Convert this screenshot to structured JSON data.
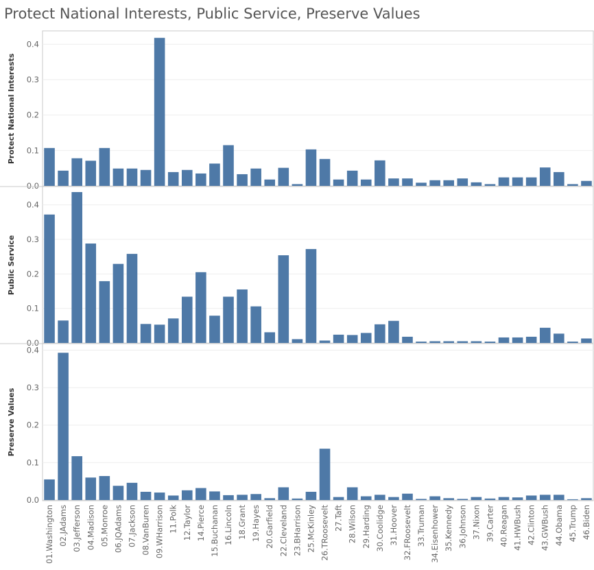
{
  "page": {
    "title": "Protect National Interests, Public Service, Preserve Values"
  },
  "colors": {
    "bar": "#4e79a7",
    "grid": "#eeeeee",
    "border": "#c8c8c8"
  },
  "chart_data": {
    "type": "bar",
    "title": "Protect National Interests, Public Service, Preserve Values",
    "grid": true,
    "categories": [
      "01.Washington",
      "02.JAdams",
      "03.Jefferson",
      "04.Madison",
      "05.Monroe",
      "06.JQAdams",
      "07.Jackson",
      "08.VanBuren",
      "09.WHarrison",
      "11.Polk",
      "12.Taylor",
      "14.Pierce",
      "15.Buchanan",
      "16.Lincoln",
      "18.Grant",
      "19.Hayes",
      "20.Garfield",
      "22.Cleveland",
      "23.BHarrison",
      "25.McKinley",
      "26.TRoosevelt",
      "27.Taft",
      "28.Wilson",
      "29.Harding",
      "30.Coolidge",
      "31.Hoover",
      "32.FRoosevelt",
      "33.Truman",
      "34.Eisenhower",
      "35.Kennedy",
      "36.Johnson",
      "37.Nixon",
      "39.Carter",
      "40.Reagan",
      "41.HWBush",
      "42.Clinton",
      "43.GWBush",
      "44.Obama",
      "45.Trump",
      "46.Biden"
    ],
    "series": [
      {
        "name": "Protect National Interests",
        "ylabel": "Protect National Interests",
        "ylim": [
          0,
          0.43
        ],
        "ticks": [
          "0.0",
          "0.1",
          "0.2",
          "0.3",
          "0.4"
        ],
        "values": [
          0.107,
          0.043,
          0.078,
          0.071,
          0.107,
          0.049,
          0.049,
          0.045,
          0.418,
          0.039,
          0.045,
          0.035,
          0.063,
          0.115,
          0.033,
          0.049,
          0.018,
          0.051,
          0.005,
          0.103,
          0.076,
          0.018,
          0.043,
          0.018,
          0.072,
          0.021,
          0.021,
          0.009,
          0.016,
          0.016,
          0.021,
          0.01,
          0.005,
          0.024,
          0.024,
          0.024,
          0.052,
          0.039,
          0.005,
          0.014
        ]
      },
      {
        "name": "Public Service",
        "ylabel": "Public Service",
        "ylim": [
          0,
          0.445
        ],
        "ticks": [
          "0.0",
          "0.1",
          "0.2",
          "0.3",
          "0.4"
        ],
        "values": [
          0.372,
          0.065,
          0.437,
          0.288,
          0.179,
          0.229,
          0.258,
          0.055,
          0.053,
          0.071,
          0.134,
          0.205,
          0.079,
          0.134,
          0.155,
          0.106,
          0.031,
          0.254,
          0.011,
          0.272,
          0.007,
          0.024,
          0.023,
          0.029,
          0.054,
          0.064,
          0.018,
          0.004,
          0.005,
          0.005,
          0.005,
          0.005,
          0.004,
          0.016,
          0.016,
          0.018,
          0.044,
          0.027,
          0.004,
          0.013
        ]
      },
      {
        "name": "Preserve Values",
        "ylabel": "Preserve Values",
        "ylim": [
          0,
          0.41
        ],
        "ticks": [
          "0.0",
          "0.1",
          "0.2",
          "0.3",
          "0.4"
        ],
        "values": [
          0.055,
          0.393,
          0.117,
          0.06,
          0.064,
          0.038,
          0.046,
          0.022,
          0.02,
          0.012,
          0.026,
          0.032,
          0.023,
          0.013,
          0.014,
          0.016,
          0.005,
          0.034,
          0.004,
          0.022,
          0.137,
          0.008,
          0.034,
          0.01,
          0.014,
          0.008,
          0.017,
          0.003,
          0.01,
          0.005,
          0.003,
          0.008,
          0.004,
          0.008,
          0.007,
          0.012,
          0.014,
          0.014,
          0.002,
          0.005
        ]
      }
    ]
  }
}
